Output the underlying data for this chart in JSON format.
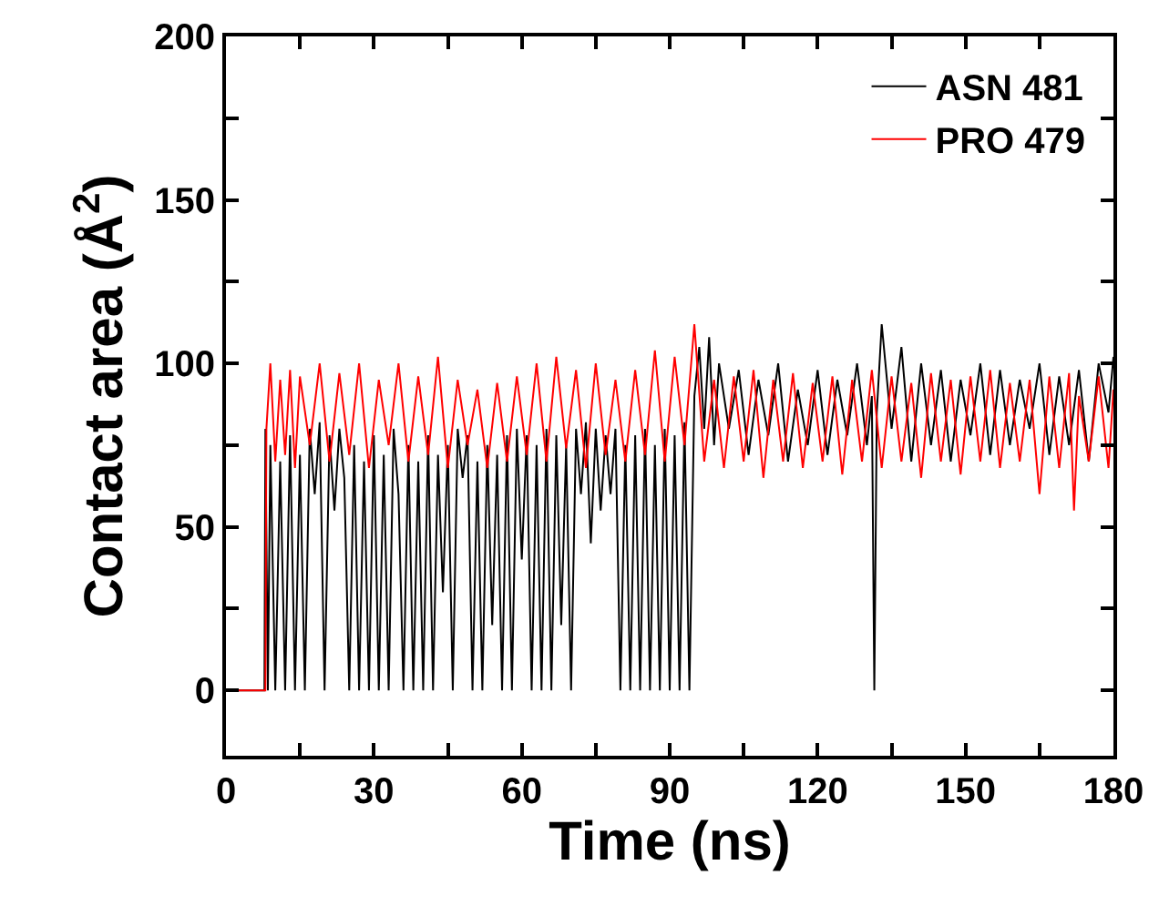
{
  "chart_data": {
    "type": "line",
    "xlabel": "Time (ns)",
    "ylabel": "Contact area (Å$^{2}$)",
    "xlim": [
      0,
      180
    ],
    "xticks": [
      0,
      {
        "value": 15,
        "label": null
      },
      30,
      {
        "value": 45,
        "label": null
      },
      60,
      {
        "value": 75,
        "label": null
      },
      90,
      {
        "value": 105,
        "label": null
      },
      120,
      {
        "value": 135,
        "label": null
      },
      150,
      {
        "value": 165,
        "label": null
      },
      180
    ],
    "ylim": [
      -20,
      200
    ],
    "yticks": [
      0,
      {
        "value": 25,
        "label": null
      },
      50,
      {
        "value": 75,
        "label": null
      },
      100,
      {
        "value": 125,
        "label": null
      },
      150,
      {
        "value": 175,
        "label": null
      },
      200
    ],
    "grid": false,
    "legend": "top right",
    "marker": "none",
    "line_style": "solid",
    "series": [
      {
        "name": "ASN 481",
        "color": "#000000",
        "x": [
          0,
          7.8,
          8,
          8.5,
          9,
          10,
          11,
          12,
          13,
          14,
          15,
          16,
          17,
          18,
          19,
          20,
          21,
          22,
          23,
          24,
          25,
          26,
          27,
          28,
          29,
          30,
          31,
          32,
          33,
          34,
          35,
          36,
          37,
          38,
          39,
          40,
          41,
          42,
          43,
          44,
          45,
          46,
          47,
          48,
          49,
          50,
          51,
          52,
          53,
          54,
          55,
          56,
          57,
          58,
          59,
          60,
          61,
          62,
          63,
          64,
          65,
          66,
          67,
          68,
          69,
          70,
          71,
          72,
          73,
          74,
          75,
          76,
          77,
          78,
          79,
          80,
          81,
          82,
          83,
          84,
          85,
          86,
          87,
          88,
          89,
          90,
          91,
          92,
          93,
          94,
          95,
          96,
          97,
          98,
          99,
          100,
          102,
          104,
          106,
          108,
          110,
          112,
          114,
          116,
          118,
          120,
          122,
          124,
          126,
          128,
          130,
          131,
          131.5,
          132,
          133,
          135,
          137,
          139,
          141,
          143,
          145,
          147,
          149,
          151,
          153,
          155,
          157,
          159,
          161,
          163,
          165,
          167,
          169,
          171,
          173,
          175,
          177,
          179,
          180
        ],
        "values": [
          0,
          0,
          80,
          0,
          75,
          0,
          70,
          0,
          78,
          0,
          72,
          0,
          80,
          60,
          82,
          0,
          78,
          55,
          80,
          65,
          0,
          75,
          0,
          70,
          0,
          78,
          0,
          72,
          0,
          80,
          60,
          0,
          75,
          0,
          70,
          0,
          78,
          0,
          72,
          30,
          75,
          0,
          80,
          65,
          78,
          0,
          70,
          0,
          75,
          20,
          72,
          0,
          78,
          0,
          80,
          40,
          78,
          0,
          75,
          0,
          80,
          0,
          78,
          20,
          75,
          0,
          80,
          60,
          82,
          45,
          80,
          55,
          78,
          60,
          80,
          0,
          75,
          0,
          78,
          0,
          80,
          0,
          75,
          0,
          80,
          0,
          78,
          0,
          82,
          0,
          90,
          105,
          80,
          108,
          75,
          100,
          80,
          98,
          72,
          95,
          78,
          100,
          70,
          92,
          75,
          98,
          72,
          95,
          78,
          100,
          75,
          90,
          0,
          85,
          112,
          80,
          105,
          70,
          100,
          75,
          98,
          70,
          95,
          78,
          100,
          72,
          98,
          75,
          95,
          80,
          100,
          72,
          96,
          75,
          98,
          70,
          100,
          85,
          102
        ]
      },
      {
        "name": "PRO 479",
        "color": "#ff0000",
        "x": [
          0,
          8,
          8.2,
          9,
          10,
          11,
          12,
          13,
          14,
          15,
          17,
          19,
          21,
          23,
          25,
          27,
          29,
          31,
          33,
          35,
          37,
          39,
          41,
          43,
          45,
          47,
          49,
          51,
          53,
          55,
          57,
          59,
          61,
          63,
          65,
          67,
          69,
          71,
          73,
          75,
          77,
          79,
          81,
          83,
          85,
          87,
          89,
          91,
          93,
          95,
          97,
          99,
          101,
          103,
          105,
          107,
          109,
          111,
          113,
          115,
          117,
          119,
          121,
          123,
          125,
          127,
          129,
          131,
          133,
          135,
          137,
          139,
          141,
          143,
          145,
          147,
          149,
          151,
          153,
          155,
          157,
          159,
          161,
          163,
          165,
          167,
          169,
          171,
          172,
          173,
          175,
          177,
          179,
          180
        ],
        "values": [
          0,
          0,
          80,
          100,
          70,
          95,
          72,
          98,
          68,
          96,
          75,
          100,
          70,
          97,
          72,
          100,
          68,
          95,
          75,
          100,
          70,
          96,
          72,
          102,
          68,
          95,
          75,
          92,
          68,
          94,
          70,
          96,
          72,
          100,
          70,
          102,
          74,
          98,
          68,
          100,
          72,
          95,
          70,
          98,
          72,
          104,
          70,
          102,
          75,
          112,
          70,
          95,
          68,
          96,
          70,
          98,
          65,
          95,
          70,
          97,
          68,
          94,
          70,
          96,
          66,
          95,
          70,
          98,
          68,
          96,
          70,
          94,
          65,
          97,
          70,
          95,
          66,
          96,
          70,
          98,
          68,
          94,
          70,
          95,
          60,
          96,
          68,
          97,
          55,
          90,
          70,
          96,
          68,
          92
        ]
      }
    ]
  }
}
